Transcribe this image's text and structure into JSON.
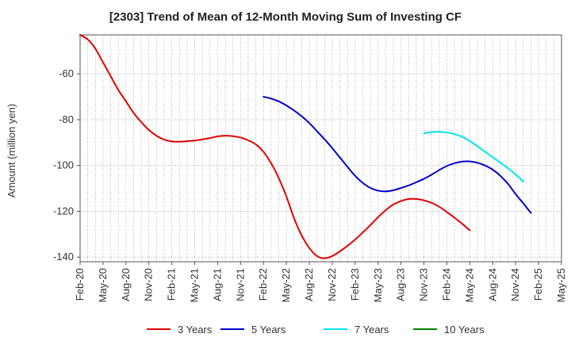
{
  "chart_data": {
    "type": "line",
    "title": "[2303]  Trend of Mean of 12-Month Moving Sum of Investing CF",
    "xlabel": "",
    "ylabel": "Amount (million yen)",
    "ylim": [
      -142,
      -43
    ],
    "yticks": [
      -140,
      -120,
      -100,
      -80,
      -60
    ],
    "ytick_labels": [
      "-140",
      "-120",
      "-100",
      "-80",
      "-60"
    ],
    "x_start": "Feb-20",
    "x_end": "May-25",
    "x_tick_labels": [
      "Feb-20",
      "May-20",
      "Aug-20",
      "Nov-20",
      "Feb-21",
      "May-21",
      "Aug-21",
      "Nov-21",
      "Feb-22",
      "May-22",
      "Aug-22",
      "Nov-22",
      "Feb-23",
      "May-23",
      "Aug-23",
      "Nov-23",
      "Feb-24",
      "May-24",
      "Aug-24",
      "Nov-24",
      "Feb-25",
      "May-25"
    ],
    "legend_position": "bottom",
    "grid": true,
    "series": [
      {
        "name": "3 Years",
        "color": "#e00000",
        "start_index": 0,
        "values": [
          -43,
          -45,
          -49,
          -55,
          -61,
          -67,
          -72,
          -77,
          -81,
          -84.5,
          -87,
          -88.7,
          -89.5,
          -89.6,
          -89.4,
          -89.1,
          -88.6,
          -88,
          -87.3,
          -87,
          -87.2,
          -87.8,
          -89,
          -90.8,
          -94,
          -99,
          -105.5,
          -113.5,
          -123,
          -130.5,
          -136,
          -139.5,
          -140.5,
          -139.5,
          -137.5,
          -135,
          -132.3,
          -129.2,
          -126,
          -122.5,
          -119.5,
          -117,
          -115.5,
          -114.6,
          -114.6,
          -115.2,
          -116.3,
          -118,
          -120.3,
          -122.8,
          -125.4,
          -128.3
        ]
      },
      {
        "name": "5 Years",
        "color": "#0000cc",
        "start_index": 24,
        "values": [
          -70,
          -70.8,
          -72,
          -73.8,
          -76,
          -78.5,
          -81.5,
          -85,
          -88.6,
          -92.4,
          -96.5,
          -100.6,
          -104.5,
          -107.6,
          -109.8,
          -111,
          -111.3,
          -110.8,
          -109.8,
          -108.7,
          -107.3,
          -105.8,
          -104,
          -102,
          -100.2,
          -99,
          -98.3,
          -98.2,
          -98.8,
          -100,
          -101.8,
          -104.5,
          -108,
          -112.5,
          -116.5,
          -120.7
        ]
      },
      {
        "name": "7 Years",
        "color": "#00e5ee",
        "start_index": 45,
        "values": [
          -86,
          -85.4,
          -85.3,
          -85.6,
          -86.3,
          -87.5,
          -89.3,
          -91.6,
          -94,
          -96.4,
          -98.7,
          -101.2,
          -103.9,
          -107
        ]
      },
      {
        "name": "10 Years",
        "color": "#008000",
        "start_index": 0,
        "values": []
      }
    ]
  }
}
